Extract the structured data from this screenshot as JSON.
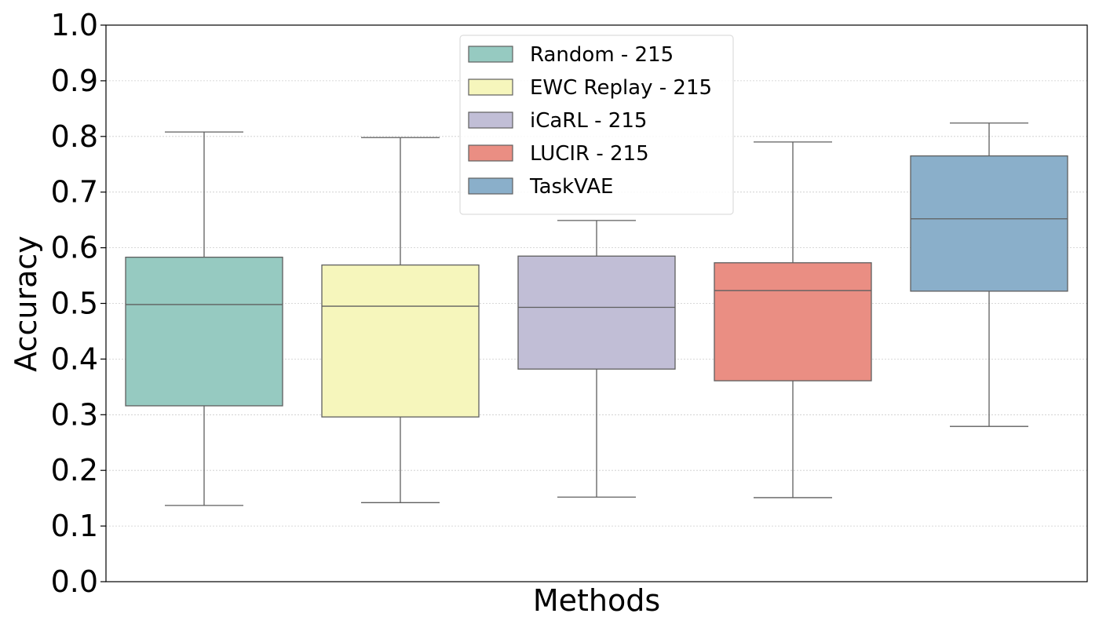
{
  "chart_data": {
    "type": "box",
    "xlabel": "Methods",
    "ylabel": "Accuracy",
    "ylim": [
      0.0,
      1.0
    ],
    "yticks": [
      "0.0",
      "0.1",
      "0.2",
      "0.3",
      "0.4",
      "0.5",
      "0.6",
      "0.7",
      "0.8",
      "0.9",
      "1.0"
    ],
    "grid": "horizontal-dotted",
    "legend_position": "top-center",
    "series": [
      {
        "name": "Random - 215",
        "color": "#96cac1",
        "min": 0.137,
        "q1": 0.316,
        "median": 0.498,
        "q3": 0.583,
        "max": 0.808
      },
      {
        "name": "EWC Replay - 215",
        "color": "#f6f6bc",
        "min": 0.142,
        "q1": 0.296,
        "median": 0.495,
        "q3": 0.569,
        "max": 0.798
      },
      {
        "name": "iCaRL - 215",
        "color": "#c1bed6",
        "min": 0.152,
        "q1": 0.382,
        "median": 0.493,
        "q3": 0.585,
        "max": 0.649
      },
      {
        "name": "LUCIR - 215",
        "color": "#ea8e83",
        "min": 0.151,
        "q1": 0.361,
        "median": 0.523,
        "q3": 0.573,
        "max": 0.79
      },
      {
        "name": "TaskVAE",
        "color": "#8aafca",
        "min": 0.279,
        "q1": 0.522,
        "median": 0.652,
        "q3": 0.765,
        "max": 0.824
      }
    ]
  }
}
